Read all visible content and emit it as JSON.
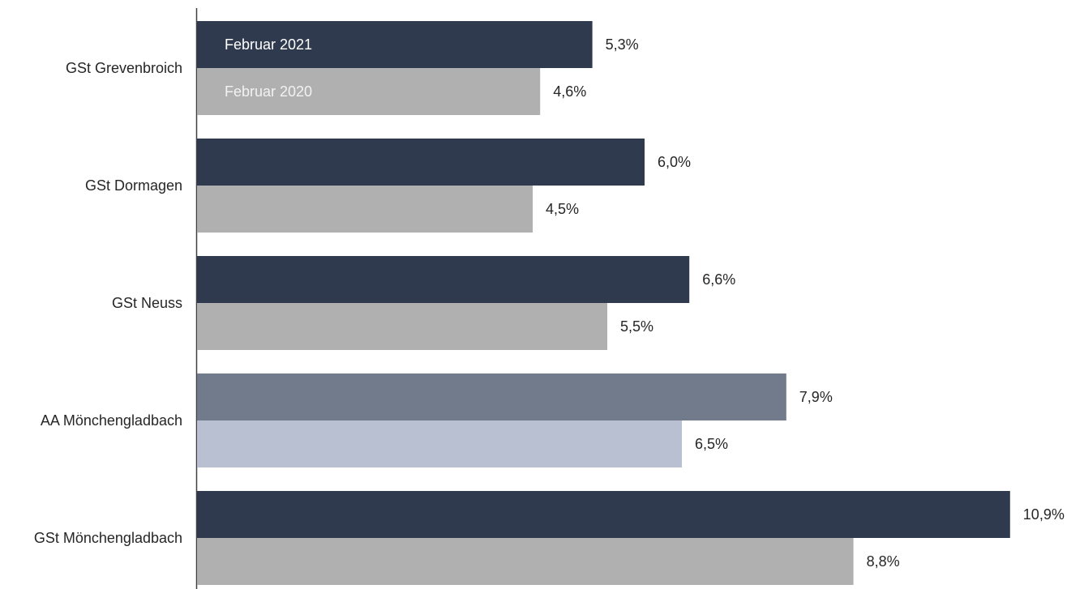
{
  "chart_data": {
    "type": "bar",
    "orientation": "horizontal",
    "categories": [
      "GSt Grevenbroich",
      "GSt Dormagen",
      "GSt Neuss",
      "AA Mönchengladbach",
      "GSt Mönchengladbach"
    ],
    "series": [
      {
        "name": "Februar 2021",
        "values": [
          5.3,
          6.0,
          6.6,
          7.9,
          10.9
        ],
        "labels": [
          "5,3%",
          "6,0%",
          "6,6%",
          "7,9%",
          "10,9%"
        ],
        "color": "#303a4f",
        "highlight_color": "#727b8c"
      },
      {
        "name": "Februar 2020",
        "values": [
          4.6,
          4.5,
          5.5,
          6.5,
          8.8
        ],
        "labels": [
          "4,6%",
          "4,5%",
          "5,5%",
          "6,5%",
          "8,8%"
        ],
        "color": "#b0b0b0",
        "highlight_color": "#b9c0d1"
      }
    ],
    "highlight_category": "AA Mönchengladbach",
    "legend_placement": "inside first bars",
    "unit": "%",
    "xlim": [
      0,
      10.9
    ],
    "grid": false
  }
}
